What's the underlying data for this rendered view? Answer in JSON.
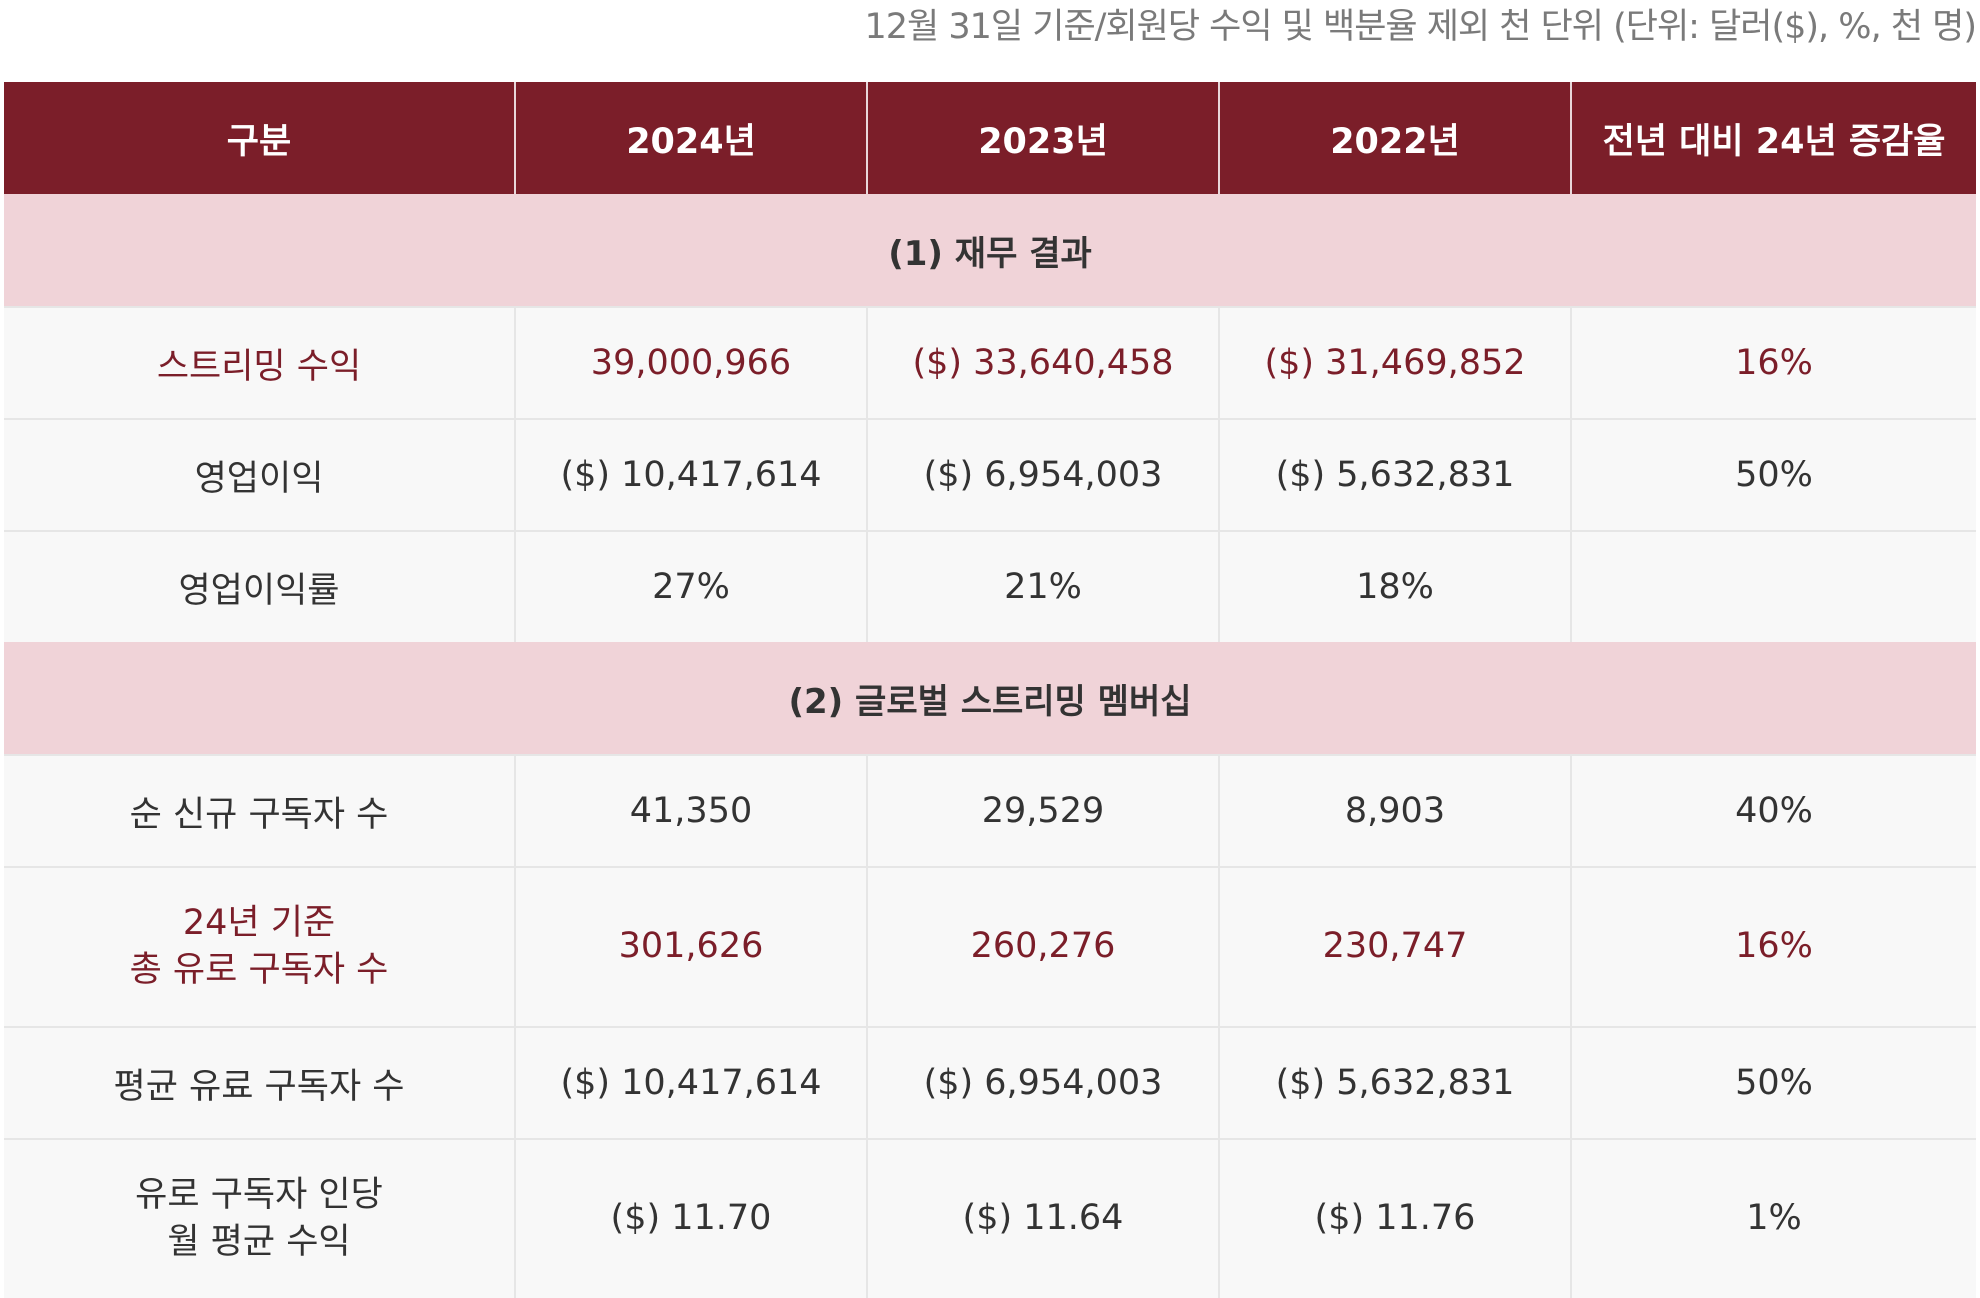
{
  "caption": "12월 31일 기준/회원당 수익 및 백분율 제외 천 단위 (단위: 달러($), %, 천 명)",
  "headers": [
    "구분",
    "2024년",
    "2023년",
    "2022년",
    "전년 대비 24년 증감율"
  ],
  "sections": {
    "financial": "(1) 재무 결과",
    "membership": "(2) 글로벌 스트리밍 멤버십"
  },
  "rows": {
    "streaming_revenue": {
      "label": "스트리밍 수익",
      "y2024": "39,000,966",
      "y2023": "($) 33,640,458",
      "y2022": "($) 31,469,852",
      "change": "16%"
    },
    "operating_income": {
      "label": "영업이익",
      "y2024": "($) 10,417,614",
      "y2023": "($) 6,954,003",
      "y2022": "($) 5,632,831",
      "change": "50%"
    },
    "operating_margin": {
      "label": "영업이익률",
      "y2024": "27%",
      "y2023": "21%",
      "y2022": "18%",
      "change": ""
    },
    "net_new_subs": {
      "label": "순 신규 구독자 수",
      "y2024": "41,350",
      "y2023": "29,529",
      "y2022": "8,903",
      "change": "40%"
    },
    "total_paid_subs": {
      "label_line1": "24년 기준",
      "label_line2": "총 유로 구독자 수",
      "y2024": "301,626",
      "y2023": "260,276",
      "y2022": "230,747",
      "change": "16%"
    },
    "avg_paid_subs": {
      "label": "평균 유료 구독자 수",
      "y2024": "($) 10,417,614",
      "y2023": "($) 6,954,003",
      "y2022": "($) 5,632,831",
      "change": "50%"
    },
    "arm": {
      "label_line1": "유로 구독자 인당",
      "label_line2": "월 평균 수익",
      "y2024": "($) 11.70",
      "y2023": "($) 11.64",
      "y2022": "($) 11.76",
      "change": "1%"
    }
  },
  "colors": {
    "header_bg": "#7b1e29",
    "section_bg": "#f0d3d8",
    "highlight_text": "#7b1e29",
    "row_bg": "#f8f8f8"
  }
}
